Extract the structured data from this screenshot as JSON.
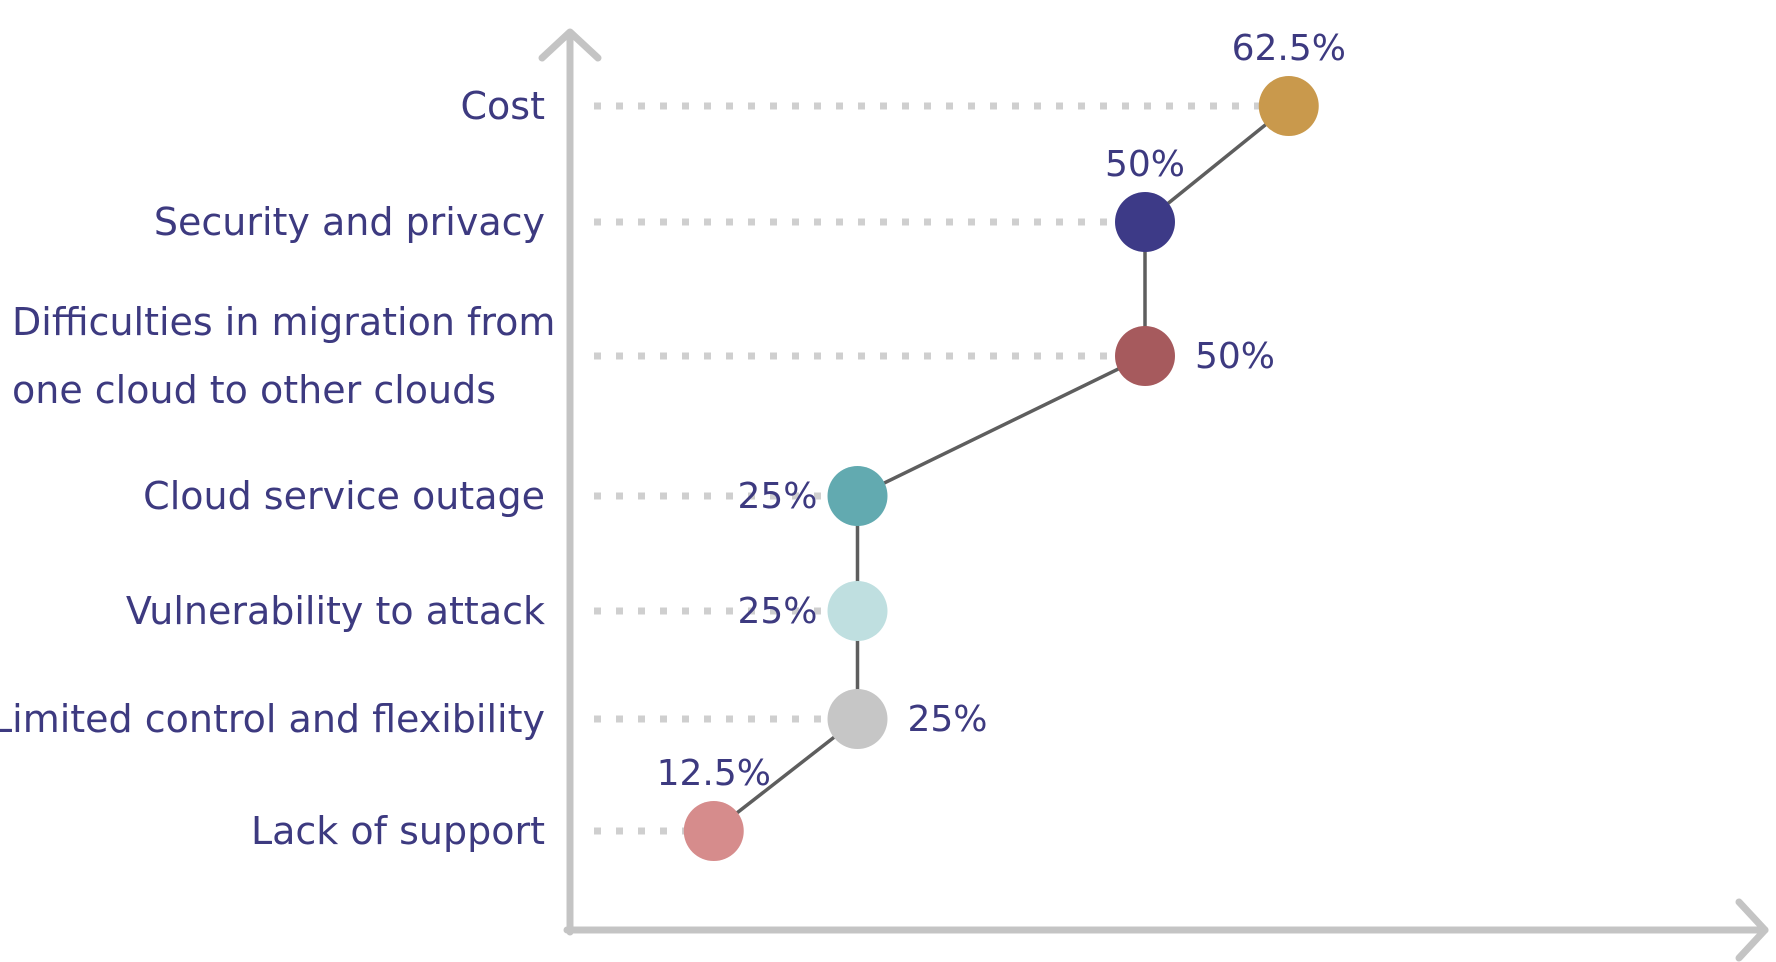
{
  "chart_data": {
    "type": "scatter",
    "title": "",
    "xlabel": "",
    "ylabel": "",
    "xlim": [
      0,
      70
    ],
    "grid": false,
    "unit": "%",
    "categories": [
      "Cost",
      "Security and privacy",
      "Difficulties in migration from one cloud to other clouds",
      "Cloud service outage",
      "Vulnerability to attack",
      "Limited control and flexibility",
      "Lack of support"
    ],
    "category_lines": [
      [
        "Cost"
      ],
      [
        "Security and privacy"
      ],
      [
        "Difficulties in migration from",
        "one cloud to other clouds"
      ],
      [
        "Cloud service outage"
      ],
      [
        "Vulnerability to attack"
      ],
      [
        "Limited control and flexibility"
      ],
      [
        "Lack of support"
      ]
    ],
    "values": [
      62.5,
      50,
      50,
      25,
      25,
      25,
      12.5
    ],
    "value_labels": [
      "62.5%",
      "50%",
      "50%",
      "25%",
      "25%",
      "25%",
      "12.5%"
    ],
    "value_label_positions": [
      "above",
      "above",
      "right",
      "left",
      "left",
      "right",
      "above"
    ],
    "colors": [
      "#c9994c",
      "#3d3a87",
      "#a65a5d",
      "#62aab0",
      "#bfdfe0",
      "#c6c6c6",
      "#d68c8c"
    ],
    "axis_color": "#c4c4c4",
    "text_color": "#3d3a80",
    "connector_color": "#5e5e5e"
  }
}
